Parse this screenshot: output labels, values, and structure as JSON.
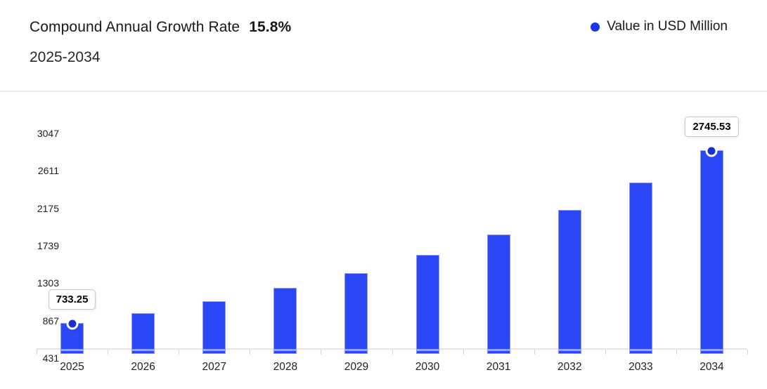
{
  "header": {
    "title": "Compound Annual Growth Rate",
    "cagr_value": "15.8%",
    "period": "2025-2034"
  },
  "legend": {
    "label": "Value in USD Million"
  },
  "colors": {
    "bar": "#2a46f5",
    "bar_edge": "#8a9af8",
    "bar_stripe": "#96a6fa",
    "marker": "#1630d6",
    "legend_dot": "#1b38e8",
    "axis_line": "#e4e4e4",
    "tick": "#d0d0d0",
    "divider": "#eaeaea",
    "text_primary": "#18181b",
    "text_axis": "#1f1f1f",
    "tooltip_border": "#c8c8c8"
  },
  "chart_data": {
    "type": "bar",
    "title": "Compound Annual Growth Rate 15.8%",
    "subtitle": "2025-2034",
    "xlabel": "",
    "ylabel": "Value in USD Million",
    "categories": [
      "2025",
      "2026",
      "2027",
      "2028",
      "2029",
      "2030",
      "2031",
      "2032",
      "2033",
      "2034"
    ],
    "series": [
      {
        "name": "Value in USD Million",
        "values": [
          733.25,
          849.1,
          983.26,
          1138.62,
          1318.51,
          1526.83,
          1768.07,
          2047.42,
          2370.91,
          2745.53
        ]
      }
    ],
    "y_ticks": [
      431,
      867,
      1303,
      1739,
      2175,
      2611,
      3047
    ],
    "ylim": [
      431,
      3200
    ],
    "grid": false,
    "legend_position": "top-right",
    "annotations": [
      {
        "category": "2025",
        "value": 733.25,
        "label": "733.25"
      },
      {
        "category": "2034",
        "value": 2745.53,
        "label": "2745.53"
      }
    ]
  }
}
